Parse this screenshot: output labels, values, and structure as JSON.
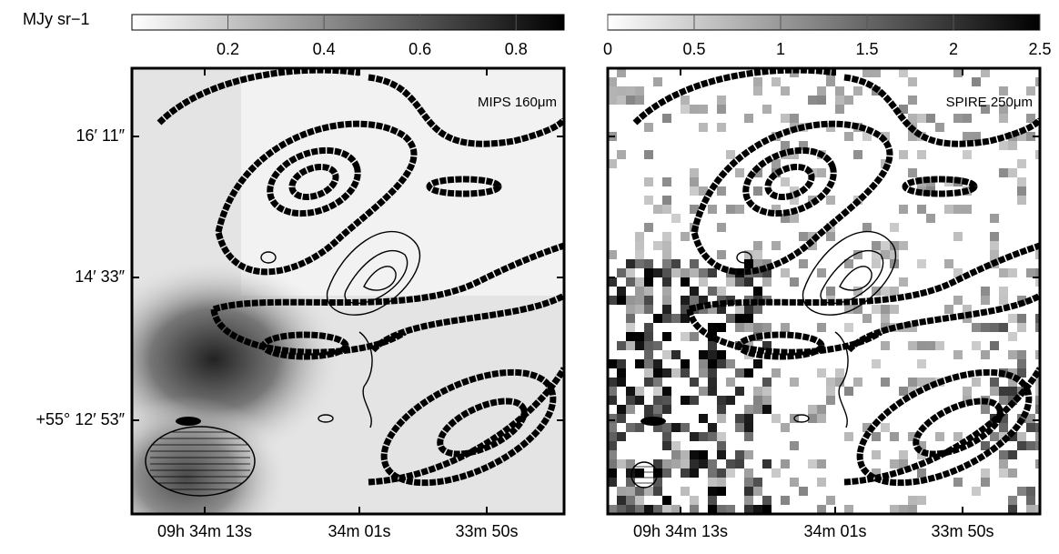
{
  "chart_data": [
    {
      "type": "image",
      "colorbar_label": "MJy sr−1",
      "colorbar_lim": [
        0,
        0.9
      ],
      "colorbar_ticks": [
        0.2,
        0.4,
        0.6,
        0.8
      ],
      "panel_label": "MIPS 160μm",
      "y_tick_labels": [
        "16′ 11″",
        "14′ 33″",
        "+55° 12′ 53″"
      ],
      "x_tick_labels": [
        "09h 34m 13s",
        "34m 01s",
        "33m 50s"
      ]
    },
    {
      "type": "image",
      "colorbar_lim": [
        0,
        2.5
      ],
      "colorbar_ticks": [
        0,
        0.5,
        1,
        1.5,
        2,
        2.5
      ],
      "panel_label": "SPIRE 250μm",
      "x_tick_labels": [
        "09h 34m 13s",
        "34m 01s",
        "33m 50s"
      ]
    }
  ]
}
